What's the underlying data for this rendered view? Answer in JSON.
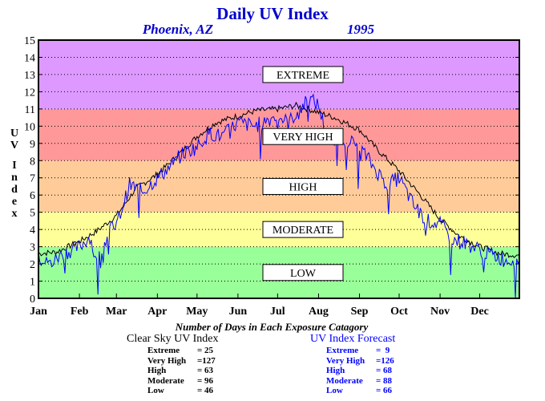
{
  "chart_data": {
    "type": "line",
    "title": "Daily UV Index",
    "location": "Phoenix, AZ",
    "year": "1995",
    "ylabel": "UV Index",
    "ylim": [
      0,
      15
    ],
    "yticks": [
      "0",
      "1",
      "2",
      "3",
      "4",
      "5",
      "6",
      "7",
      "8",
      "9",
      "10",
      "11",
      "12",
      "13",
      "14",
      "15"
    ],
    "xlim": [
      1,
      365
    ],
    "months": [
      "Jan",
      "Feb",
      "Mar",
      "Apr",
      "May",
      "Jun",
      "Jul",
      "Aug",
      "Sep",
      "Oct",
      "Nov",
      "Dec"
    ],
    "month_start_days": [
      1,
      32,
      60,
      91,
      121,
      152,
      182,
      213,
      244,
      274,
      305,
      335
    ],
    "grid": "horizontal-dotted",
    "bands": [
      {
        "label": "LOW",
        "from": 0,
        "to": 3,
        "color": "#99ff99"
      },
      {
        "label": "MODERATE",
        "from": 3,
        "to": 5,
        "color": "#ffff99"
      },
      {
        "label": "HIGH",
        "from": 5,
        "to": 8,
        "color": "#ffcc99"
      },
      {
        "label": "VERY HIGH",
        "from": 8,
        "to": 11,
        "color": "#ff9999"
      },
      {
        "label": "EXTREME",
        "from": 11,
        "to": 15,
        "color": "#dd99ff"
      }
    ],
    "series": [
      {
        "name": "Clear Sky UV Index",
        "color": "#000000",
        "x": [
          1,
          15,
          32,
          45,
          60,
          75,
          91,
          105,
          121,
          135,
          152,
          166,
          182,
          196,
          205,
          213,
          225,
          244,
          258,
          274,
          290,
          305,
          320,
          335,
          350,
          365
        ],
        "y": [
          2.6,
          2.7,
          3.3,
          3.9,
          4.8,
          6.4,
          7.2,
          8.2,
          9.4,
          10.2,
          10.6,
          10.9,
          11.0,
          11.2,
          11.0,
          10.8,
          10.5,
          9.8,
          8.6,
          7.4,
          6.0,
          4.6,
          3.6,
          3.0,
          2.6,
          2.5
        ]
      },
      {
        "name": "UV Index Forecast",
        "color": "#0000ff",
        "x": [
          1,
          10,
          20,
          32,
          40,
          45,
          55,
          60,
          70,
          80,
          91,
          100,
          110,
          121,
          130,
          140,
          152,
          165,
          175,
          182,
          190,
          198,
          206,
          213,
          220,
          230,
          244,
          255,
          265,
          274,
          285,
          295,
          305,
          315,
          325,
          335,
          345,
          355,
          365
        ],
        "y": [
          2.3,
          2.0,
          2.6,
          3.0,
          3.6,
          2.0,
          4.0,
          4.2,
          6.6,
          6.2,
          7.0,
          7.6,
          8.4,
          8.8,
          9.6,
          9.4,
          10.2,
          10.0,
          10.4,
          10.6,
          10.2,
          10.9,
          11.6,
          11.2,
          9.2,
          9.4,
          8.8,
          7.6,
          6.6,
          7.0,
          5.4,
          4.5,
          4.3,
          3.4,
          3.2,
          2.8,
          2.5,
          2.2,
          2.3
        ]
      }
    ]
  },
  "summary": {
    "heading": "Number of Days in Each Exposure Catagory",
    "clear_sky": {
      "title": "Clear Sky UV Index",
      "rows": [
        {
          "label": "Extreme",
          "value": "= 25"
        },
        {
          "label": "Very High",
          "value": "=127"
        },
        {
          "label": "High",
          "value": "= 63"
        },
        {
          "label": "Moderate",
          "value": "= 96"
        },
        {
          "label": "Low",
          "value": "= 46"
        }
      ]
    },
    "forecast": {
      "title": "UV Index Forecast",
      "rows": [
        {
          "label": "Extreme",
          "value": "=  9"
        },
        {
          "label": "Very High",
          "value": "=126"
        },
        {
          "label": "High",
          "value": "= 68"
        },
        {
          "label": "Moderate",
          "value": "= 88"
        },
        {
          "label": "Low",
          "value": "= 66"
        }
      ]
    }
  }
}
